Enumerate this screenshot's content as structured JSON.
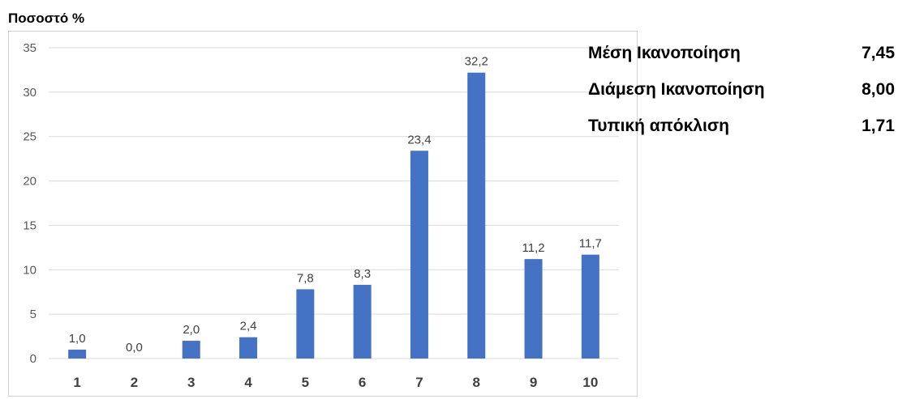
{
  "chart_data": {
    "type": "bar",
    "title": "",
    "ylabel": "Ποσοστό %",
    "xlabel": "",
    "categories": [
      "1",
      "2",
      "3",
      "4",
      "5",
      "6",
      "7",
      "8",
      "9",
      "10"
    ],
    "values": [
      1.0,
      0.0,
      2.0,
      2.4,
      7.8,
      8.3,
      23.4,
      32.2,
      11.2,
      11.7
    ],
    "data_labels": [
      "1,0",
      "0,0",
      "2,0",
      "2,4",
      "7,8",
      "8,3",
      "23,4",
      "32,2",
      "11,2",
      "11,7"
    ],
    "ylim": [
      0,
      35
    ],
    "yticks": [
      0,
      5,
      10,
      15,
      20,
      25,
      30,
      35
    ],
    "ytick_labels": [
      "0",
      "5",
      "10",
      "15",
      "20",
      "25",
      "30",
      "35"
    ],
    "grid": true,
    "bar_color": "#4472c4",
    "grid_color": "#d9d9d9"
  },
  "stats": [
    {
      "label": "Μέση Ικανοποίηση",
      "value": "7,45"
    },
    {
      "label": "Διάμεση Ικανοποίηση",
      "value": "8,00"
    },
    {
      "label": "Τυπική απόκλιση",
      "value": "1,71"
    }
  ]
}
